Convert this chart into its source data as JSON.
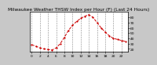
{
  "title": "Milwaukee Weather THSW Index per Hour (F) (Last 24 Hours)",
  "x_values": [
    0,
    1,
    2,
    3,
    4,
    5,
    6,
    7,
    8,
    9,
    10,
    11,
    12,
    13,
    14,
    15,
    16,
    17,
    18,
    19,
    20,
    21,
    22,
    23
  ],
  "y_values": [
    28,
    25,
    22,
    20,
    19,
    18,
    22,
    30,
    42,
    55,
    65,
    72,
    78,
    82,
    85,
    80,
    70,
    60,
    52,
    45,
    40,
    38,
    36,
    34
  ],
  "ylim": [
    15,
    90
  ],
  "yticks": [
    20,
    30,
    40,
    50,
    60,
    70,
    80
  ],
  "xlim": [
    -0.5,
    23.5
  ],
  "xticks": [
    0,
    2,
    4,
    6,
    8,
    10,
    12,
    14,
    16,
    18,
    20,
    22
  ],
  "line_color": "#cc0000",
  "marker": "o",
  "marker_size": 1.2,
  "line_style": "--",
  "line_width": 0.7,
  "bg_color": "#c8c8c8",
  "plot_bg_color": "#ffffff",
  "grid_color": "#888888",
  "title_fontsize": 4.2,
  "tick_fontsize": 3.2,
  "grid_linestyle": "--",
  "grid_linewidth": 0.4
}
